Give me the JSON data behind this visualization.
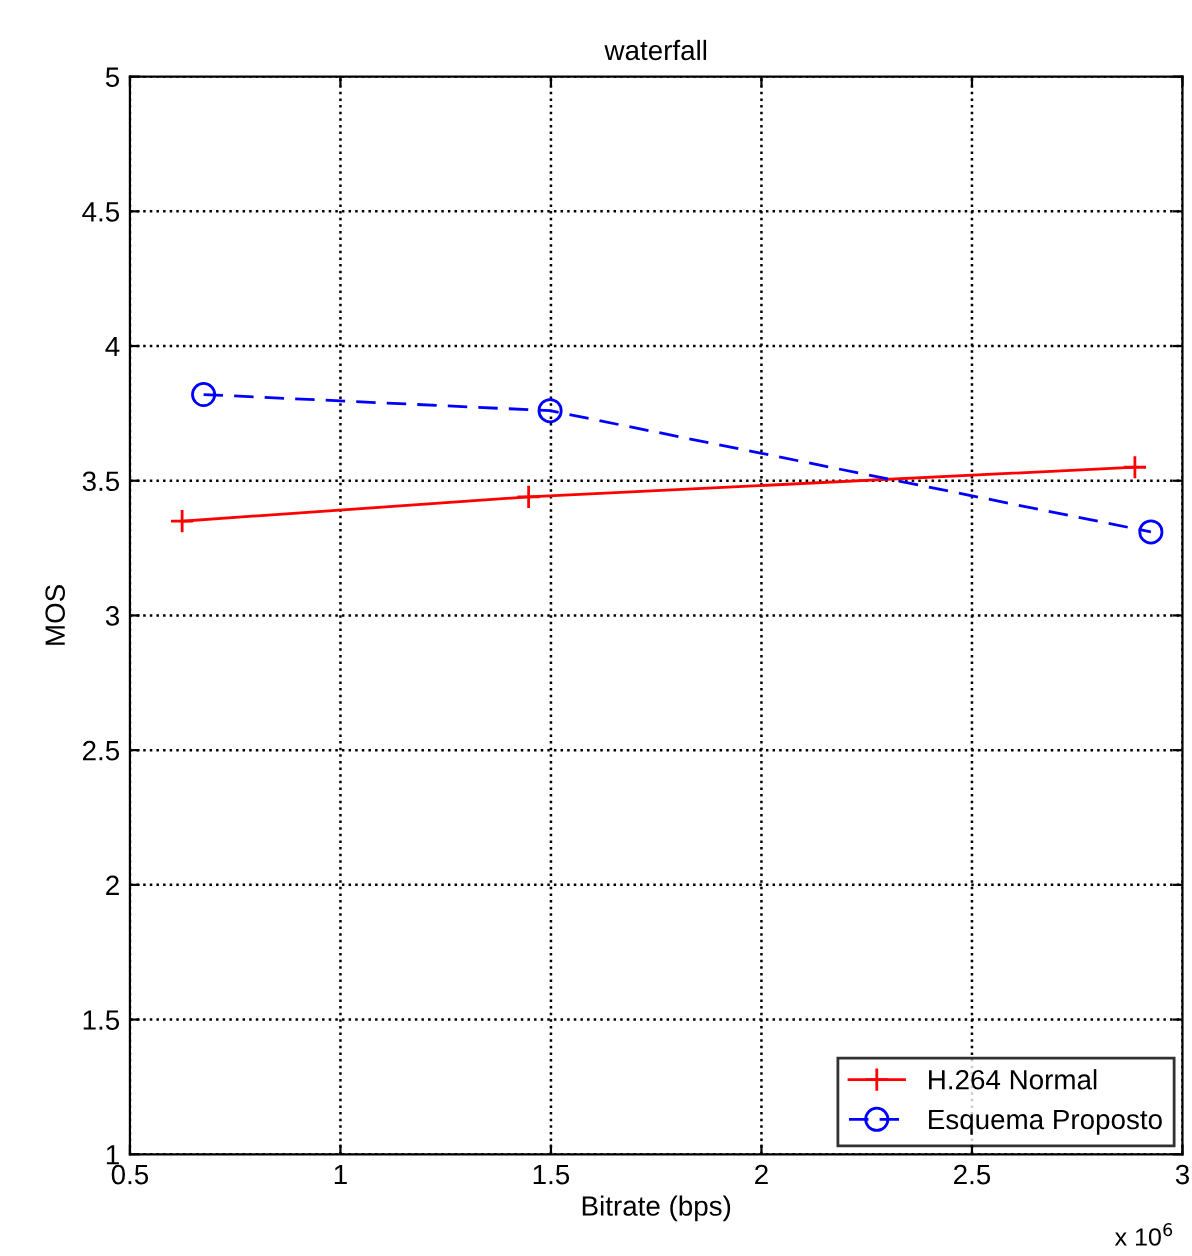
{
  "chart_data": {
    "type": "line",
    "title": "waterfall",
    "xlabel": "Bitrate (bps)",
    "ylabel": "MOS",
    "annotations": [
      "x 10$^{6}$"
    ],
    "series": [
      {
        "name": "H.264 Normal",
        "color": "#ff0000",
        "x": [
          0.624,
          1.447,
          2.887
        ],
        "values": [
          3.35,
          3.44,
          3.55
        ],
        "marker": "cross",
        "line_style": "solid"
      },
      {
        "name": "Esquema Proposto",
        "color": "#0000ff",
        "x": [
          0.675,
          1.498,
          2.925
        ],
        "values": [
          3.82,
          3.76,
          3.31
        ],
        "marker": "circle",
        "line_style": "dashed"
      }
    ],
    "xlim": [
      0.5,
      3
    ],
    "xticks": [
      0.5,
      1,
      1.5,
      2,
      2.5,
      3
    ],
    "ylim": [
      1,
      5
    ],
    "yticks": [
      1,
      1.5,
      2,
      2.5,
      3,
      3.5,
      4,
      4.5,
      5
    ],
    "grid": true,
    "legend": "bottom right"
  }
}
